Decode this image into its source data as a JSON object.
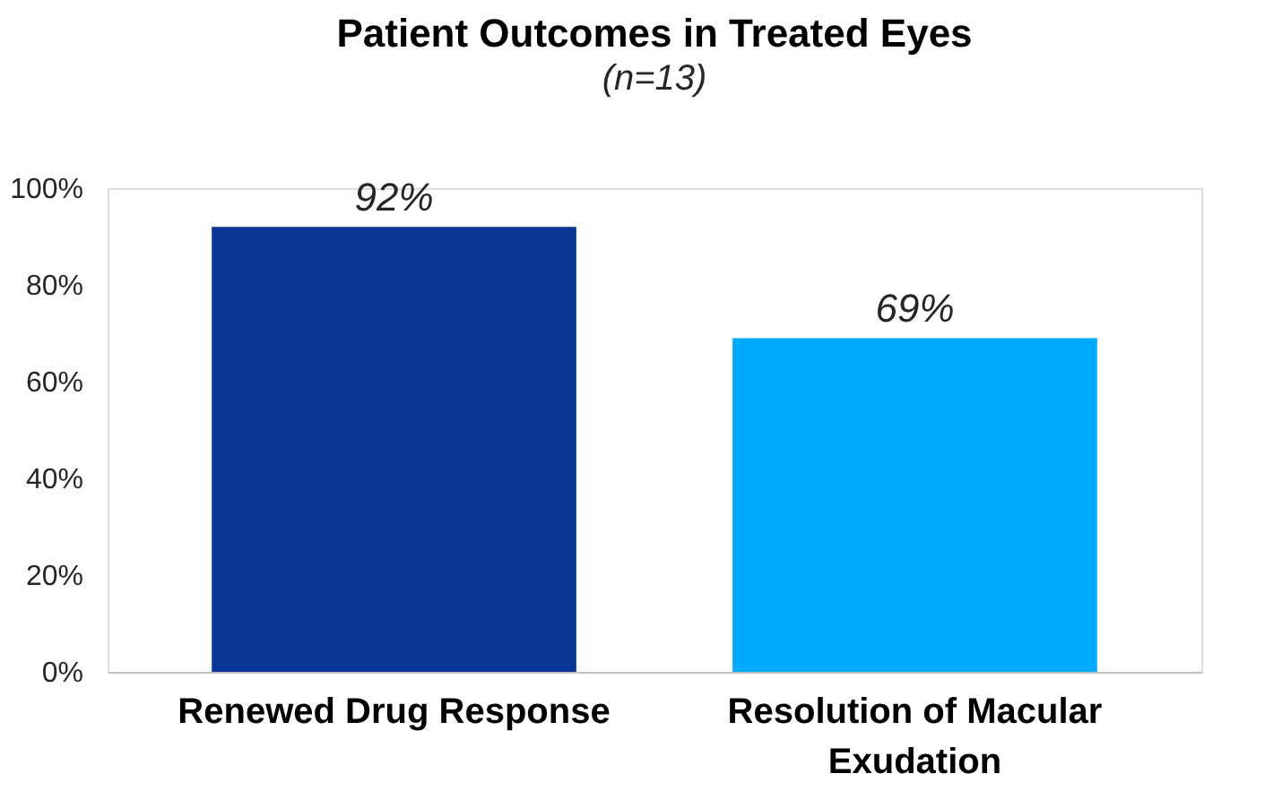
{
  "chart_data": {
    "type": "bar",
    "title": "Patient Outcomes in Treated Eyes",
    "subtitle": "(n=13)",
    "categories": [
      "Renewed Drug Response",
      "Resolution of Macular Exudation"
    ],
    "values": [
      92,
      69
    ],
    "colors": [
      "#0a3595",
      "#00aaff"
    ],
    "value_labels": [
      "92%",
      "69%"
    ],
    "ylim": [
      0,
      100
    ],
    "yticks": [
      {
        "value": 0,
        "label": "0%"
      },
      {
        "value": 20,
        "label": "20%"
      },
      {
        "value": 40,
        "label": "40%"
      },
      {
        "value": 60,
        "label": "60%"
      },
      {
        "value": 80,
        "label": "80%"
      },
      {
        "value": 100,
        "label": "100%"
      }
    ],
    "grid": false
  }
}
